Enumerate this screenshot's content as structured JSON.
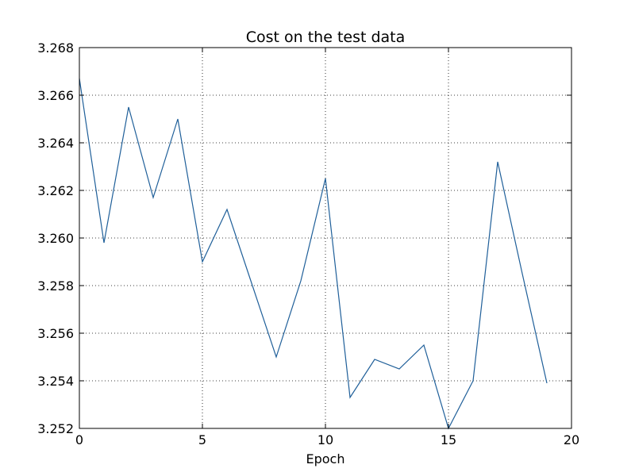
{
  "chart_data": {
    "type": "line",
    "title": "Cost on the test data",
    "xlabel": "Epoch",
    "ylabel": "",
    "xlim": [
      0,
      20
    ],
    "ylim": [
      3.252,
      3.268
    ],
    "xticks": [
      0,
      5,
      10,
      15,
      20
    ],
    "xtick_labels": [
      "0",
      "5",
      "10",
      "15",
      "20"
    ],
    "yticks": [
      3.252,
      3.254,
      3.256,
      3.258,
      3.26,
      3.262,
      3.264,
      3.266,
      3.268
    ],
    "ytick_labels": [
      "3.252",
      "3.254",
      "3.256",
      "3.258",
      "3.260",
      "3.262",
      "3.264",
      "3.266",
      "3.268"
    ],
    "grid": true,
    "legend": "none",
    "line_color": "#1f5f99",
    "series": [
      {
        "x": [
          0,
          1,
          2,
          3,
          4,
          5,
          6,
          7,
          8,
          9,
          10,
          11,
          12,
          13,
          14,
          15,
          16,
          17,
          18,
          19
        ],
        "values": [
          3.2667,
          3.2598,
          3.2655,
          3.2617,
          3.265,
          3.259,
          3.2612,
          3.2581,
          3.255,
          3.2582,
          3.2625,
          3.2533,
          3.2549,
          3.2545,
          3.2555,
          3.252,
          3.254,
          3.2632,
          3.2585,
          3.2539
        ]
      }
    ]
  }
}
